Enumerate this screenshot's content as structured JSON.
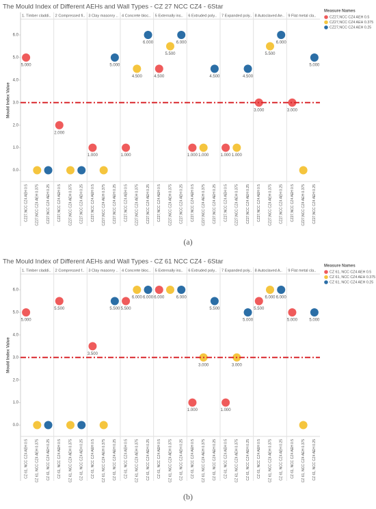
{
  "chart_data": [
    {
      "type": "dot",
      "title": "The Mould Index of Different AEHs and Wall Types - CZ 27 NCC CZ4 - 6Star",
      "y_label": "Mould Index Value",
      "legend_title": "Measure Names",
      "legend": "right",
      "categories": [
        "1. Timber claddi..",
        "2 Compressed fi..",
        "3 Clay masonry ..",
        "4 Concrete bloc..",
        "5 Externally ins..",
        "6 Extruded poly..",
        "7 Expanded poly..",
        "8 Autoclaved Ae..",
        "9 Flat metal cla.."
      ],
      "series": [
        {
          "name": "CZ27,NCC CZ4 AEH 0.5",
          "color": "#ef5b5b",
          "values": [
            5,
            2,
            1,
            1,
            4.5,
            1,
            1,
            3,
            3
          ],
          "value_labels": [
            "5.000",
            "2.000",
            "1.000",
            "1.000",
            "4.500",
            "1.000",
            "1.000",
            "3.000",
            "3.000"
          ]
        },
        {
          "name": "CZ27,NCC CZ4 AEH 0.375",
          "color": "#f5c53e",
          "values": [
            0,
            0,
            0,
            4.5,
            5.5,
            1,
            1,
            5.5,
            0
          ],
          "value_labels": [
            null,
            null,
            null,
            "4.500",
            "5.500",
            "1.000",
            "1.000",
            "5.500",
            null
          ]
        },
        {
          "name": "CZ27,NCC CZ4 AEH 0.25",
          "color": "#2b6ea6",
          "values": [
            0,
            0,
            5,
            6,
            6,
            4.5,
            4.5,
            6,
            5
          ],
          "value_labels": [
            null,
            null,
            "5.000",
            "6.000",
            "6.000",
            "4.500",
            "4.500",
            "6.000",
            "5.000"
          ]
        }
      ],
      "ylim": [
        -0.5,
        6.7
      ],
      "yticks": [
        {
          "value": 0,
          "label": "0.0"
        },
        {
          "value": 1,
          "label": "1.0"
        },
        {
          "value": 2,
          "label": "2.0"
        },
        {
          "value": 3,
          "label": "3.0"
        },
        {
          "value": 4,
          "label": "4.0"
        },
        {
          "value": 5,
          "label": "5.0"
        },
        {
          "value": 6,
          "label": "6.0"
        }
      ],
      "reference_line": 3,
      "reference_color": "#d9262b"
    },
    {
      "type": "dot",
      "title": "The Mould Index of Different AEHs and Wall Types - CZ 61 NCC CZ4 - 6Star",
      "y_label": "Mould Index Value",
      "legend_title": "Measure Names",
      "legend": "right",
      "categories": [
        "1. Timber claddi..",
        "2 Compressed f..",
        "3 Clay masonry ..",
        "4 Concrete bloc..",
        "5 Externally ins..",
        "6 Extruded poly..",
        "7 Expanded poly..",
        "8 Autoclaved A..",
        "9 Flat metal cla.."
      ],
      "series": [
        {
          "name": "CZ 61, NCC CZ4 AEH 0.5",
          "color": "#ef5b5b",
          "values": [
            5,
            5.5,
            3.5,
            5.5,
            6,
            1,
            1,
            5.5,
            5
          ],
          "value_labels": [
            "5.000",
            "5.500",
            "3.500",
            "5.500",
            "6.000",
            "1.000",
            "1.000",
            "5.500",
            "5.000"
          ]
        },
        {
          "name": "CZ 61, NCC CZ4 AEH 0.375",
          "color": "#f5c53e",
          "values": [
            0,
            0,
            0,
            6,
            6,
            3,
            3,
            6,
            0
          ],
          "value_labels": [
            null,
            null,
            null,
            "6.000",
            null,
            "3.000",
            "3.000",
            "6.000",
            null
          ]
        },
        {
          "name": "CZ 61, NCC CZ4 AEH 0.25",
          "color": "#2b6ea6",
          "values": [
            0,
            0,
            5.5,
            6,
            6,
            5.5,
            5,
            6,
            5
          ],
          "value_labels": [
            null,
            null,
            "5.500",
            "6.000",
            "6.000",
            "5.500",
            "5.000",
            "6.000",
            "5.000"
          ]
        }
      ],
      "ylim": [
        -0.5,
        6.7
      ],
      "yticks": [
        {
          "value": 0,
          "label": "0.0"
        },
        {
          "value": 1,
          "label": "1.0"
        },
        {
          "value": 2,
          "label": "2.0"
        },
        {
          "value": 3,
          "label": "3.0"
        },
        {
          "value": 4,
          "label": "4.0"
        },
        {
          "value": 5,
          "label": "5.0"
        },
        {
          "value": 6,
          "label": "6.0"
        }
      ],
      "reference_line": 3,
      "reference_color": "#d9262b"
    }
  ],
  "captions": [
    "(a)",
    "(b)"
  ]
}
